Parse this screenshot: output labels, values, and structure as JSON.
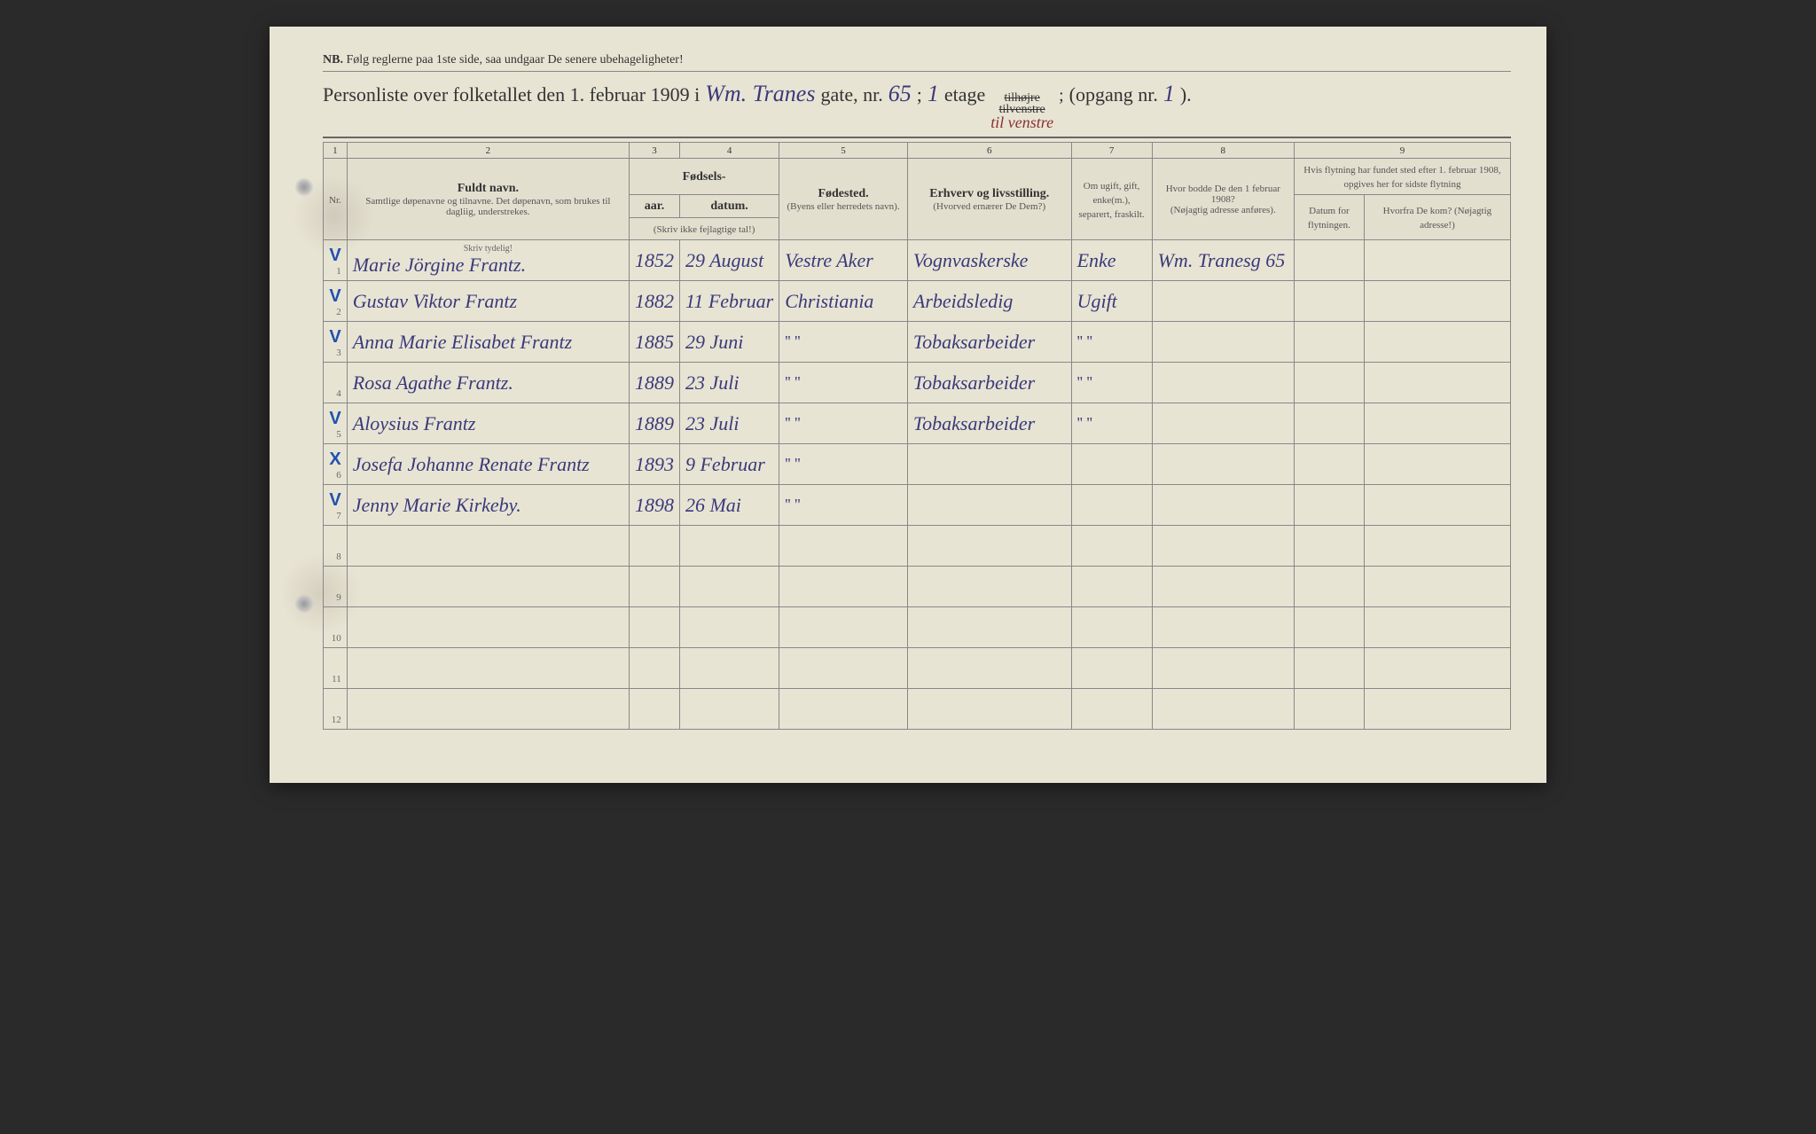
{
  "colors": {
    "paper": "#e8e4d4",
    "print_text": "#333333",
    "handwriting_ink": "#3a3a7a",
    "red_ink": "#8a3030",
    "blue_mark": "#2050b0",
    "border": "#888888"
  },
  "header": {
    "nb_prefix": "NB.",
    "nb_text": "Følg reglerne paa 1ste side, saa undgaar De senere ubehageligheter!",
    "title_prefix": "Personliste over folketallet den 1. februar 1909 i",
    "street_hw": "Wm. Tranes",
    "gate_label": "gate, nr.",
    "gate_nr_hw": "65",
    "semicolon": ";",
    "etage_nr_hw": "1",
    "etage_label": "etage",
    "side_struck1": "tilhøjre",
    "side_struck2": "tilvenstre",
    "side_hw": "til venstre",
    "opgang_label": "(opgang nr.",
    "opgang_nr_hw": "1",
    "opgang_close": ")."
  },
  "columns": {
    "numbers": [
      "1",
      "2",
      "3",
      "4",
      "5",
      "6",
      "7",
      "8",
      "9"
    ],
    "c1": "Nr.",
    "c2_main": "Fuldt navn.",
    "c2_sub": "Samtlige døpenavne og tilnavne. Det døpenavn, som brukes til dagliig, understrekes.",
    "c34_group": "Fødsels-",
    "c3": "aar.",
    "c4": "datum.",
    "c34_note": "(Skriv ikke fejlagtige tal!)",
    "c5_main": "Fødested.",
    "c5_sub": "(Byens eller herredets navn).",
    "c6_main": "Erhverv og livsstilling.",
    "c6_sub": "(Hvorved ernærer De Dem?)",
    "c7": "Om ugift, gift, enke(m.), separert, fraskilt.",
    "c8_main": "Hvor bodde De den 1 februar 1908?",
    "c8_sub": "(Nøjagtig adresse anføres).",
    "c9_group": "Hvis flytning har fundet sted efter 1. februar 1908, opgives her for sidste flytning",
    "c9a": "Datum for flytningen.",
    "c9b": "Hvorfra De kom? (Nøjagtig adresse!)",
    "skriv_tydelig": "Skriv tydelig!"
  },
  "rows": [
    {
      "n": "1",
      "mark": "V",
      "name": "Marie Jörgine Frantz.",
      "year": "1852",
      "date": "29 August",
      "birthplace": "Vestre Aker",
      "occupation": "Vognvaskerske",
      "marital": "Enke",
      "addr1908": "Wm. Tranesg 65"
    },
    {
      "n": "2",
      "mark": "V",
      "name": "Gustav Viktor Frantz",
      "year": "1882",
      "date": "11 Februar",
      "birthplace": "Christiania",
      "occupation": "Arbeidsledig",
      "marital": "Ugift",
      "addr1908": ""
    },
    {
      "n": "3",
      "mark": "V",
      "name": "Anna Marie Elisabet Frantz",
      "year": "1885",
      "date": "29 Juni",
      "birthplace": "ditto",
      "occupation": "Tobaksarbeider",
      "marital": "ditto",
      "addr1908": ""
    },
    {
      "n": "4",
      "mark": "",
      "name": "Rosa Agathe Frantz.",
      "year": "1889",
      "date": "23 Juli",
      "birthplace": "ditto",
      "occupation": "Tobaksarbeider",
      "marital": "ditto",
      "addr1908": ""
    },
    {
      "n": "5",
      "mark": "V",
      "name": "Aloysius Frantz",
      "year": "1889",
      "date": "23 Juli",
      "birthplace": "ditto",
      "occupation": "Tobaksarbeider",
      "marital": "ditto",
      "addr1908": ""
    },
    {
      "n": "6",
      "mark": "X",
      "name": "Josefa Johanne Renate Frantz",
      "year": "1893",
      "date": "9 Februar",
      "birthplace": "ditto",
      "occupation": "",
      "marital": "",
      "addr1908": ""
    },
    {
      "n": "7",
      "mark": "V",
      "name": "Jenny Marie Kirkeby.",
      "year": "1898",
      "date": "26 Mai",
      "birthplace": "ditto",
      "occupation": "",
      "marital": "",
      "addr1908": ""
    },
    {
      "n": "8"
    },
    {
      "n": "9"
    },
    {
      "n": "10"
    },
    {
      "n": "11"
    },
    {
      "n": "12"
    }
  ],
  "ditto_glyph": "''    ''"
}
